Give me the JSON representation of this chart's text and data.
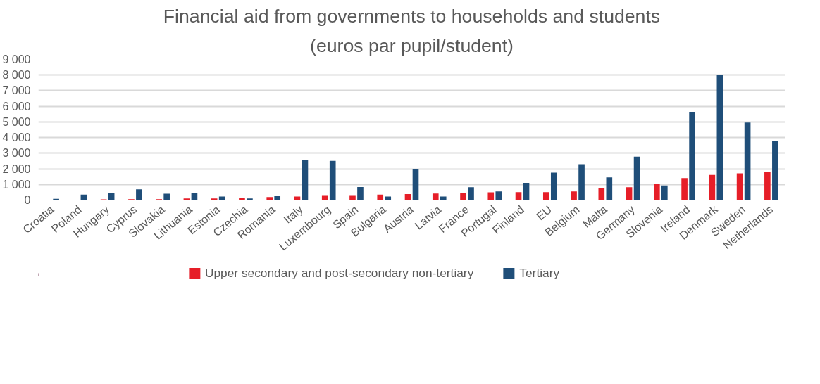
{
  "chart_data": {
    "type": "bar",
    "title": "Financial aid from governments to households and students",
    "subtitle": "(euros par pupil/student)",
    "categories": [
      "Croatia",
      "Poland",
      "Hungary",
      "Cyprus",
      "Slovakia",
      "Lithuania",
      "Estonia",
      "Czechia",
      "Romania",
      "Italy",
      "Luxembourg",
      "Spain",
      "Bulgaria",
      "Austria",
      "Latvia",
      "France",
      "Portugal",
      "Finland",
      "EU",
      "Belgium",
      "Malta",
      "Germany",
      "Slovenia",
      "Ireland",
      "Denmark",
      "Sweden",
      "Netherlands"
    ],
    "series": [
      {
        "name": "Upper secondary and post-secondary non-tertiary",
        "color": "#e61e28",
        "values": [
          0,
          0,
          50,
          60,
          60,
          100,
          100,
          150,
          190,
          230,
          310,
          320,
          350,
          380,
          420,
          450,
          500,
          510,
          510,
          550,
          790,
          820,
          1010,
          1410,
          1610,
          1710,
          1780
        ]
      },
      {
        "name": "Tertiary",
        "color": "#1f4e79",
        "values": [
          80,
          350,
          430,
          690,
          410,
          430,
          230,
          100,
          280,
          2570,
          2510,
          830,
          220,
          2000,
          230,
          820,
          550,
          1100,
          1760,
          2300,
          1450,
          2780,
          930,
          5650,
          8030,
          4960,
          3800
        ]
      }
    ],
    "ylim": [
      0,
      9000
    ],
    "yticks": [
      {
        "value": 0,
        "label": "0"
      },
      {
        "value": 1000,
        "label": "1 000"
      },
      {
        "value": 2000,
        "label": "2 000"
      },
      {
        "value": 3000,
        "label": "3 000"
      },
      {
        "value": 4000,
        "label": "4 000"
      },
      {
        "value": 5000,
        "label": "5 000"
      },
      {
        "value": 6000,
        "label": "6 000"
      },
      {
        "value": 7000,
        "label": "7 000"
      },
      {
        "value": 8000,
        "label": "8 000"
      },
      {
        "value": 9000,
        "label": "9 000"
      }
    ],
    "grid": "y",
    "legend": "bottom"
  }
}
